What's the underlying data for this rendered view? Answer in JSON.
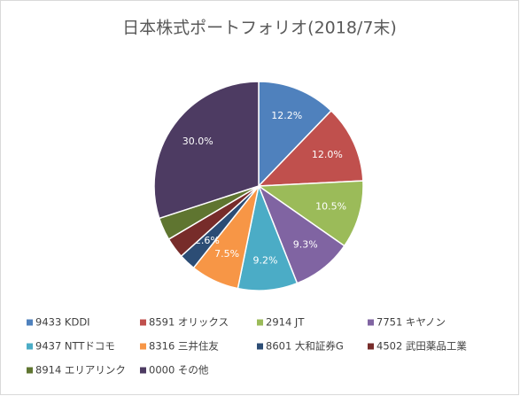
{
  "chart_data": {
    "type": "pie",
    "title": "日本株式ポートフォリオ(2018/7末)",
    "categories": [
      "9433 KDDI",
      "8591 オリックス",
      "2914 JT",
      "7751 キヤノン",
      "9437 NTTドコモ",
      "8316 三井住友",
      "8601 大和証券G",
      "4502 武田薬品工業",
      "8914 エリアリンク",
      "0000 その他"
    ],
    "values": [
      12.2,
      12.0,
      10.5,
      9.3,
      9.2,
      7.5,
      2.6,
      3.2,
      3.5,
      30.0
    ],
    "value_labels": [
      "12.2%",
      "12.0%",
      "10.5%",
      "9.3%",
      "9.2%",
      "7.5%",
      "2.6%",
      null,
      null,
      "30.0%"
    ],
    "colors": [
      "#4F81BD",
      "#C0504D",
      "#9BBB59",
      "#8064A2",
      "#4BACC6",
      "#F79646",
      "#2C4D75",
      "#772C2A",
      "#5F7530",
      "#4D3B62"
    ],
    "legend": "bottom"
  }
}
